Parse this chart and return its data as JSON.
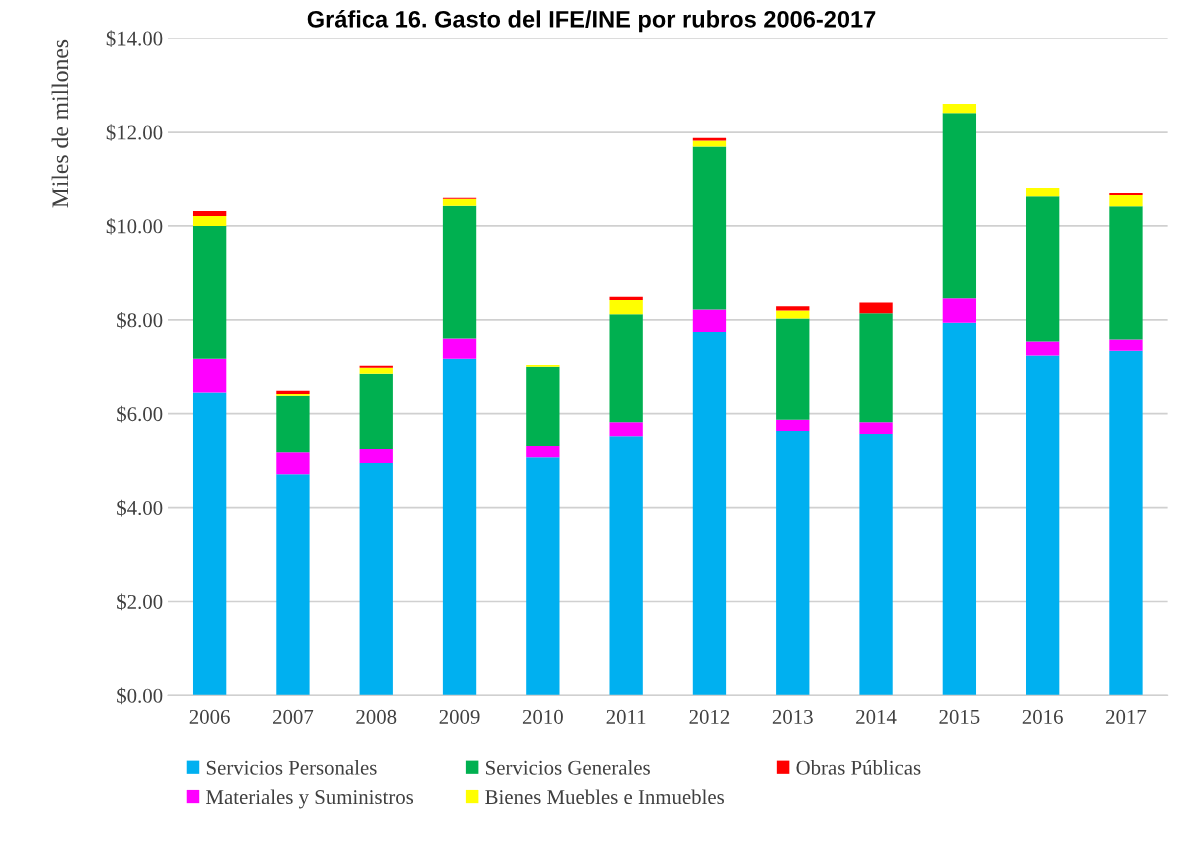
{
  "chart_data": {
    "type": "bar",
    "stacked": true,
    "title": "Gráfica 16. Gasto del IFE/INE por rubros 2006-2017",
    "ylabel": "Miles de millones",
    "categories": [
      "2006",
      "2007",
      "2008",
      "2009",
      "2010",
      "2011",
      "2012",
      "2013",
      "2014",
      "2015",
      "2016",
      "2017"
    ],
    "series": [
      {
        "name": "Servicios Personales",
        "color": "#00b0f0",
        "values": [
          6.45,
          4.71,
          4.95,
          7.17,
          5.07,
          5.52,
          7.74,
          5.63,
          5.57,
          7.94,
          7.24,
          7.34
        ]
      },
      {
        "name": "Materiales y Suministros",
        "color": "#ff00ff",
        "values": [
          0.72,
          0.47,
          0.3,
          0.43,
          0.24,
          0.3,
          0.48,
          0.24,
          0.25,
          0.52,
          0.3,
          0.24
        ]
      },
      {
        "name": "Servicios Generales",
        "color": "#00b050",
        "values": [
          2.83,
          1.2,
          1.6,
          2.83,
          1.69,
          2.3,
          3.47,
          2.16,
          2.32,
          3.94,
          3.09,
          2.84
        ]
      },
      {
        "name": "Bienes Muebles e Inmuebles",
        "color": "#ffff00",
        "values": [
          0.21,
          0.04,
          0.13,
          0.15,
          0.04,
          0.3,
          0.13,
          0.17,
          0,
          0.2,
          0.18,
          0.24
        ]
      },
      {
        "name": "Obras Públicas",
        "color": "#ff0000",
        "values": [
          0.11,
          0.07,
          0.04,
          0.02,
          0,
          0.07,
          0.06,
          0.09,
          0.23,
          0,
          0,
          0.04
        ]
      }
    ],
    "ylim": [
      0,
      14
    ],
    "yticks": [
      {
        "value": 0,
        "label": "$0.00"
      },
      {
        "value": 2,
        "label": "$2.00"
      },
      {
        "value": 4,
        "label": "$4.00"
      },
      {
        "value": 6,
        "label": "$6.00"
      },
      {
        "value": 8,
        "label": "$8.00"
      },
      {
        "value": 10,
        "label": "$10.00"
      },
      {
        "value": 12,
        "label": "$12.00"
      },
      {
        "value": 14,
        "label": "$14.00"
      }
    ],
    "grid": "y",
    "legend": "bottom"
  }
}
